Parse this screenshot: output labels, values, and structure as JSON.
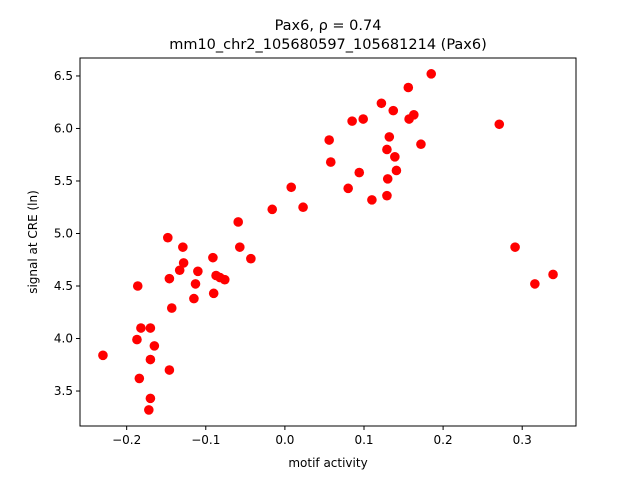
{
  "chart_data": {
    "type": "scatter",
    "title_line1": "Pax6, ρ = 0.74",
    "title_line2": "mm10_chr2_105680597_105681214 (Pax6)",
    "xlabel": "motif activity",
    "ylabel": "signal at CRE (ln)",
    "xlim": [
      -0.259,
      0.368
    ],
    "ylim": [
      3.167,
      6.671
    ],
    "xticks": [
      -0.2,
      -0.1,
      0.0,
      0.1,
      0.2,
      0.3
    ],
    "xtick_labels": [
      "−0.2",
      "−0.1",
      "0.0",
      "0.1",
      "0.2",
      "0.3"
    ],
    "yticks": [
      3.5,
      4.0,
      4.5,
      5.0,
      5.5,
      6.0,
      6.5
    ],
    "ytick_labels": [
      "3.5",
      "4.0",
      "4.5",
      "5.0",
      "5.5",
      "6.0",
      "6.5"
    ],
    "grid": false,
    "marker_color": "#ff0000",
    "points": [
      [
        -0.23,
        3.84
      ],
      [
        -0.186,
        4.5
      ],
      [
        -0.187,
        3.99
      ],
      [
        -0.182,
        4.1
      ],
      [
        -0.184,
        3.62
      ],
      [
        -0.17,
        4.1
      ],
      [
        -0.17,
        3.8
      ],
      [
        -0.165,
        3.93
      ],
      [
        -0.17,
        3.43
      ],
      [
        -0.172,
        3.32
      ],
      [
        -0.146,
        3.7
      ],
      [
        -0.148,
        4.96
      ],
      [
        -0.146,
        4.57
      ],
      [
        -0.143,
        4.29
      ],
      [
        -0.133,
        4.65
      ],
      [
        -0.129,
        4.87
      ],
      [
        -0.128,
        4.72
      ],
      [
        -0.115,
        4.38
      ],
      [
        -0.113,
        4.52
      ],
      [
        -0.11,
        4.64
      ],
      [
        -0.091,
        4.77
      ],
      [
        -0.09,
        4.43
      ],
      [
        -0.087,
        4.6
      ],
      [
        -0.082,
        4.58
      ],
      [
        -0.076,
        4.56
      ],
      [
        -0.059,
        5.11
      ],
      [
        -0.057,
        4.87
      ],
      [
        -0.043,
        4.76
      ],
      [
        -0.016,
        5.23
      ],
      [
        0.008,
        5.44
      ],
      [
        0.023,
        5.25
      ],
      [
        0.056,
        5.89
      ],
      [
        0.058,
        5.68
      ],
      [
        0.08,
        5.43
      ],
      [
        0.085,
        6.07
      ],
      [
        0.094,
        5.58
      ],
      [
        0.099,
        6.09
      ],
      [
        0.11,
        5.32
      ],
      [
        0.122,
        6.24
      ],
      [
        0.129,
        5.8
      ],
      [
        0.132,
        5.92
      ],
      [
        0.137,
        6.17
      ],
      [
        0.13,
        5.52
      ],
      [
        0.129,
        5.36
      ],
      [
        0.139,
        5.73
      ],
      [
        0.141,
        5.6
      ],
      [
        0.156,
        6.39
      ],
      [
        0.157,
        6.09
      ],
      [
        0.163,
        6.13
      ],
      [
        0.172,
        5.85
      ],
      [
        0.185,
        6.52
      ],
      [
        0.271,
        6.04
      ],
      [
        0.291,
        4.87
      ],
      [
        0.316,
        4.52
      ],
      [
        0.339,
        4.61
      ]
    ]
  }
}
